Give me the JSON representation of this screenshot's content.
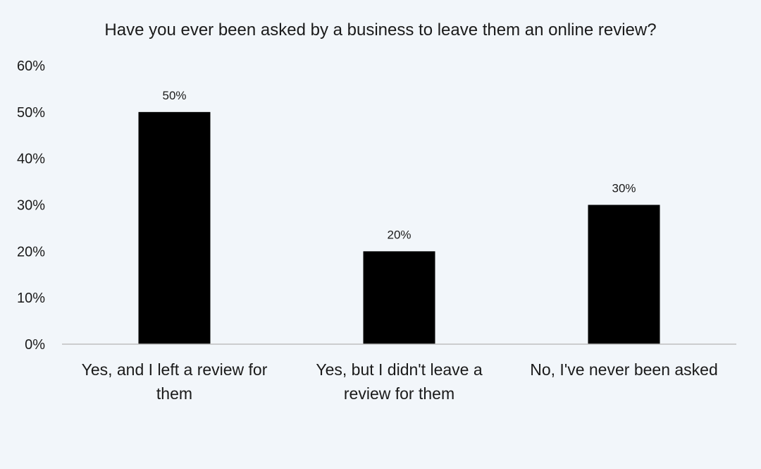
{
  "chart_data": {
    "type": "bar",
    "title": "Have you ever been asked by a business to leave them an online review?",
    "xlabel": "",
    "ylabel": "",
    "categories": [
      [
        "Yes, and I left a review for",
        "them"
      ],
      [
        "Yes, but I didn't leave a",
        "review for them"
      ],
      [
        "No, I've never been asked"
      ]
    ],
    "values": [
      50,
      20,
      30
    ],
    "data_labels": [
      "50%",
      "20%",
      "30%"
    ],
    "ylim": [
      0,
      60
    ],
    "yticks": [
      0,
      10,
      20,
      30,
      40,
      50,
      60
    ],
    "ytick_labels": [
      "0%",
      "10%",
      "20%",
      "30%",
      "40%",
      "50%",
      "60%"
    ],
    "grid": false,
    "legend": "none",
    "bar_color": "#000000",
    "axis_color": "#bfbfbf",
    "background_color": "#f2f6fa"
  }
}
